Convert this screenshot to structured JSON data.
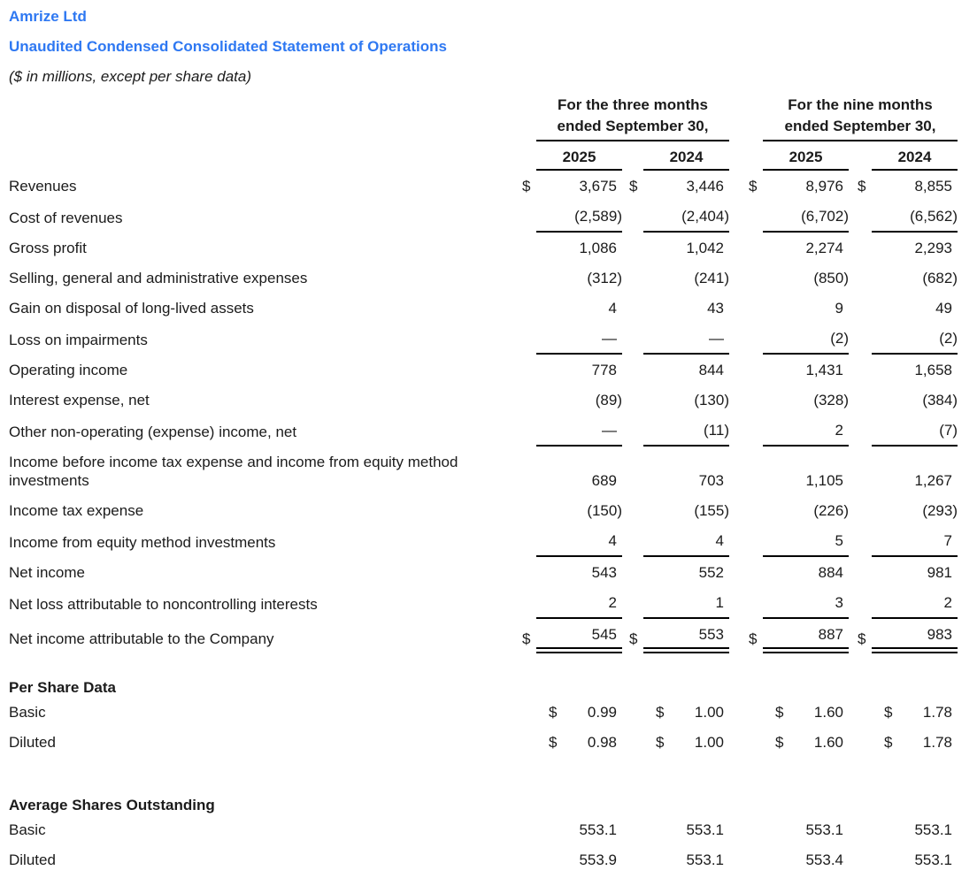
{
  "header": {
    "company": "Amrize Ltd",
    "title": "Unaudited Condensed Consolidated Statement of Operations",
    "note": "($ in millions, except per share data)"
  },
  "colors": {
    "accent": "#2e78f2",
    "text": "#1b1b1b",
    "rule": "#000000"
  },
  "currency_symbol": "$",
  "table": {
    "groups": [
      {
        "header": "For the three months\nended September 30,",
        "years": [
          "2025",
          "2024"
        ]
      },
      {
        "header": "For the nine months\nended September 30,",
        "years": [
          "2025",
          "2024"
        ]
      }
    ],
    "rows": [
      {
        "label": "Revenues",
        "dollar": true,
        "underline": "none",
        "values": [
          "3,675",
          "3,446",
          "8,976",
          "8,855"
        ]
      },
      {
        "label": "Cost of revenues",
        "dollar": false,
        "underline": "single",
        "values": [
          "(2,589)",
          "(2,404)",
          "(6,702)",
          "(6,562)"
        ]
      },
      {
        "label": "Gross profit",
        "dollar": false,
        "underline": "none",
        "values": [
          "1,086",
          "1,042",
          "2,274",
          "2,293"
        ]
      },
      {
        "label": "Selling, general and administrative expenses",
        "dollar": false,
        "underline": "none",
        "values": [
          "(312)",
          "(241)",
          "(850)",
          "(682)"
        ]
      },
      {
        "label": "Gain on disposal of long-lived assets",
        "dollar": false,
        "underline": "none",
        "values": [
          "4",
          "43",
          "9",
          "49"
        ]
      },
      {
        "label": "Loss on impairments",
        "dollar": false,
        "underline": "single",
        "values": [
          "—",
          "—",
          "(2)",
          "(2)"
        ]
      },
      {
        "label": "Operating income",
        "dollar": false,
        "underline": "none",
        "values": [
          "778",
          "844",
          "1,431",
          "1,658"
        ]
      },
      {
        "label": "Interest expense, net",
        "dollar": false,
        "underline": "none",
        "values": [
          "(89)",
          "(130)",
          "(328)",
          "(384)"
        ]
      },
      {
        "label": "Other non-operating (expense) income, net",
        "dollar": false,
        "underline": "single",
        "values": [
          "—",
          "(11)",
          "2",
          "(7)"
        ]
      },
      {
        "label": "Income before income tax expense and income from equity method investments",
        "dollar": false,
        "underline": "none",
        "values": [
          "689",
          "703",
          "1,105",
          "1,267"
        ]
      },
      {
        "label": "Income tax expense",
        "dollar": false,
        "underline": "none",
        "values": [
          "(150)",
          "(155)",
          "(226)",
          "(293)"
        ]
      },
      {
        "label": "Income from equity method investments",
        "dollar": false,
        "underline": "single",
        "values": [
          "4",
          "4",
          "5",
          "7"
        ]
      },
      {
        "label": "Net income",
        "dollar": false,
        "underline": "none",
        "values": [
          "543",
          "552",
          "884",
          "981"
        ]
      },
      {
        "label": "Net loss attributable to noncontrolling interests",
        "dollar": false,
        "underline": "single",
        "values": [
          "2",
          "1",
          "3",
          "2"
        ]
      },
      {
        "label": "Net income attributable to the Company",
        "dollar": true,
        "underline": "double",
        "values": [
          "545",
          "553",
          "887",
          "983"
        ]
      }
    ]
  },
  "per_share": {
    "heading": "Per Share Data",
    "rows": [
      {
        "label": "Basic",
        "dollar_inline": true,
        "values": [
          "0.99",
          "1.00",
          "1.60",
          "1.78"
        ]
      },
      {
        "label": "Diluted",
        "dollar_inline": true,
        "values": [
          "0.98",
          "1.00",
          "1.60",
          "1.78"
        ]
      }
    ]
  },
  "avg_shares": {
    "heading": "Average Shares Outstanding",
    "rows": [
      {
        "label": "Basic",
        "dollar_inline": false,
        "values": [
          "553.1",
          "553.1",
          "553.1",
          "553.1"
        ]
      },
      {
        "label": "Diluted",
        "dollar_inline": false,
        "values": [
          "553.9",
          "553.1",
          "553.4",
          "553.1"
        ]
      }
    ]
  }
}
